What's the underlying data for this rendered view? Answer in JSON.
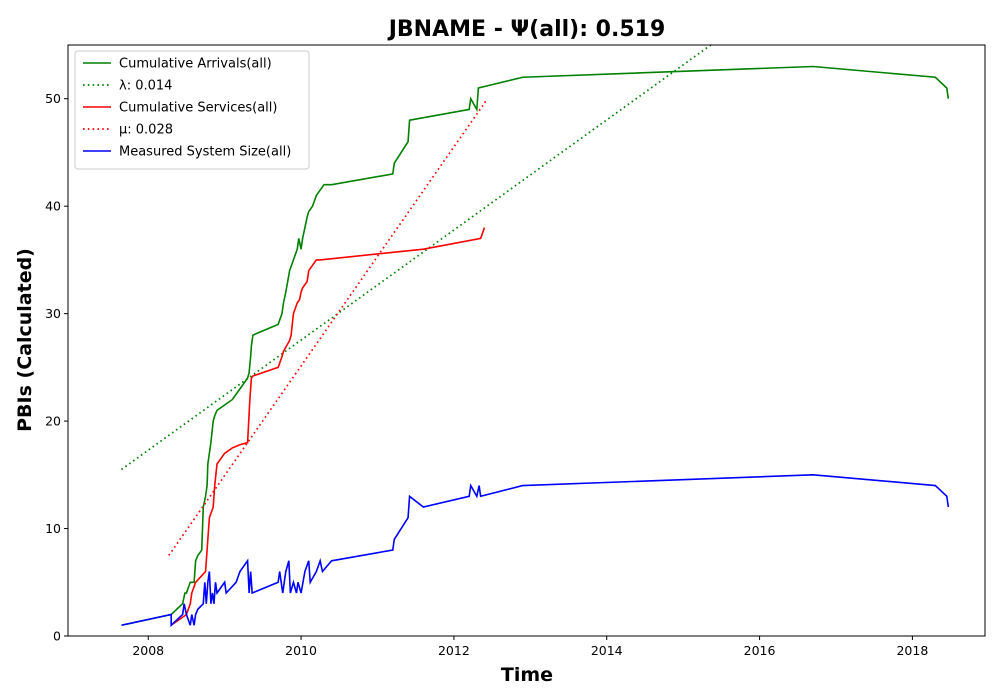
{
  "chart_data": {
    "type": "line",
    "title": "JBNAME -  Ψ(all): 0.519",
    "xlabel": "Time",
    "ylabel": "PBIs (Calculated)",
    "xlim": [
      2006.95,
      2018.95
    ],
    "ylim": [
      0,
      55
    ],
    "xticks": [
      2008,
      2010,
      2012,
      2014,
      2016,
      2018
    ],
    "yticks": [
      0,
      10,
      20,
      30,
      40,
      50
    ],
    "grid": false,
    "legend_position": "upper-left",
    "series": [
      {
        "name": "Cumulative Arrivals(all)",
        "legend": "Cumulative Arrivals(all)",
        "color": "#008000",
        "style": "solid",
        "x": [
          2007.65,
          2008.3,
          2008.45,
          2008.48,
          2008.5,
          2008.55,
          2008.6,
          2008.62,
          2008.65,
          2008.7,
          2008.72,
          2008.75,
          2008.77,
          2008.78,
          2008.8,
          2008.82,
          2008.85,
          2008.87,
          2008.9,
          2009.0,
          2009.1,
          2009.2,
          2009.3,
          2009.32,
          2009.34,
          2009.35,
          2009.37,
          2009.7,
          2009.75,
          2009.77,
          2009.8,
          2009.85,
          2009.9,
          2009.95,
          2009.97,
          2010.0,
          2010.02,
          2010.05,
          2010.08,
          2010.1,
          2010.15,
          2010.2,
          2010.25,
          2010.3,
          2010.4,
          2011.2,
          2011.22,
          2011.4,
          2011.42,
          2012.2,
          2012.22,
          2012.3,
          2012.32,
          2012.9,
          2016.7,
          2018.3,
          2018.45,
          2018.47
        ],
        "y": [
          1,
          2,
          3,
          4,
          4,
          5,
          5,
          7,
          7.5,
          8,
          12,
          13,
          14,
          16,
          17,
          18,
          20,
          20.5,
          21,
          21.5,
          22,
          23,
          24,
          24.5,
          26,
          27,
          28,
          29,
          30,
          31,
          32,
          34,
          35,
          36,
          37,
          36,
          37,
          38,
          39,
          39.5,
          40,
          41,
          41.5,
          42,
          42,
          43,
          44,
          46,
          48,
          49,
          50,
          49,
          51,
          52,
          53,
          52,
          51,
          50
        ]
      },
      {
        "name": "λ: 0.014",
        "legend": "λ: 0.014",
        "color": "#008000",
        "style": "dotted",
        "x": [
          2007.65,
          2015.4
        ],
        "y": [
          15.5,
          55.2
        ]
      },
      {
        "name": "Cumulative Services(all)",
        "legend": "Cumulative Services(all)",
        "color": "#ff0000",
        "style": "solid",
        "x": [
          2008.3,
          2008.5,
          2008.55,
          2008.57,
          2008.62,
          2008.75,
          2008.77,
          2008.8,
          2008.85,
          2008.87,
          2008.9,
          2009.0,
          2009.1,
          2009.2,
          2009.3,
          2009.33,
          2009.34,
          2009.35,
          2009.37,
          2009.7,
          2009.75,
          2009.77,
          2009.85,
          2009.87,
          2009.9,
          2009.95,
          2009.98,
          2010.0,
          2010.02,
          2010.08,
          2010.1,
          2010.15,
          2010.2,
          2010.25,
          2011.6,
          2012.35,
          2012.4
        ],
        "y": [
          1,
          2,
          3,
          4,
          5,
          6,
          8,
          11,
          12,
          14,
          16,
          17,
          17.5,
          17.8,
          18,
          22,
          23,
          24,
          24.2,
          25,
          26,
          26.5,
          27.5,
          28,
          30,
          31,
          31.3,
          32,
          32.4,
          33,
          34,
          34.5,
          35,
          35,
          36,
          37,
          38
        ]
      },
      {
        "name": "μ: 0.028",
        "legend": "μ: 0.028",
        "color": "#ff0000",
        "style": "dotted",
        "x": [
          2008.27,
          2012.42
        ],
        "y": [
          7.5,
          49.8
        ]
      },
      {
        "name": "Measured System Size(all)",
        "legend": "Measured System Size(all)",
        "color": "#0000ff",
        "style": "solid",
        "x": [
          2007.65,
          2008.3,
          2008.3,
          2008.45,
          2008.47,
          2008.5,
          2008.55,
          2008.57,
          2008.6,
          2008.62,
          2008.65,
          2008.72,
          2008.74,
          2008.76,
          2008.78,
          2008.8,
          2008.82,
          2008.84,
          2008.86,
          2008.88,
          2008.9,
          2009.0,
          2009.02,
          2009.15,
          2009.2,
          2009.3,
          2009.32,
          2009.34,
          2009.36,
          2009.7,
          2009.72,
          2009.76,
          2009.8,
          2009.84,
          2009.86,
          2009.9,
          2009.94,
          2009.96,
          2010.0,
          2010.05,
          2010.1,
          2010.12,
          2010.2,
          2010.25,
          2010.28,
          2010.4,
          2011.2,
          2011.22,
          2011.4,
          2011.42,
          2011.6,
          2012.2,
          2012.22,
          2012.3,
          2012.33,
          2012.35,
          2012.9,
          2016.7,
          2018.3,
          2018.45,
          2018.47
        ],
        "y": [
          1,
          2,
          1,
          2,
          3,
          2,
          1,
          2,
          1,
          2,
          2.5,
          3,
          5,
          3,
          5,
          6,
          3,
          4,
          3,
          5,
          4,
          5,
          4,
          5,
          6,
          7,
          4,
          6,
          4,
          5,
          6,
          4,
          6,
          7,
          4,
          5,
          4,
          5,
          4,
          6,
          7,
          5,
          6,
          7,
          6,
          7,
          8,
          9,
          11,
          13,
          12,
          13,
          14,
          13,
          14,
          13,
          14,
          15,
          14,
          13,
          12
        ]
      }
    ]
  }
}
